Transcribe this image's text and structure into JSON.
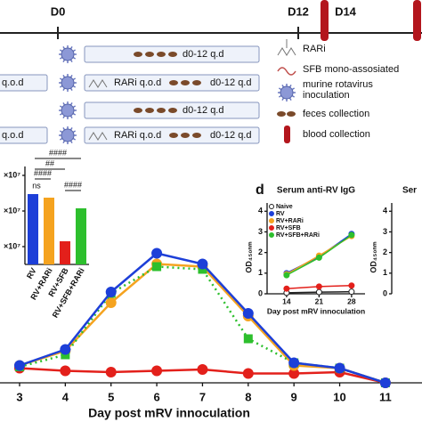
{
  "schematic": {
    "days": [
      "D0",
      "D12",
      "D14"
    ],
    "rows": [
      {
        "treatment": "d0-12 q.d"
      },
      {
        "pre": "q.o.d",
        "rari": "RARi q.o.d",
        "treatment": "d0-12 q.d"
      },
      {
        "treatment": "d0-12 q.d"
      },
      {
        "pre": "q.o.d",
        "rari": "RARi q.o.d",
        "treatment": "d0-12 q.d"
      }
    ],
    "legend": [
      [
        "RARi"
      ],
      [
        "SFB mono-assosiated"
      ],
      [
        "murine rotavirus",
        "inoculation"
      ],
      [
        "feces collection"
      ],
      [
        "blood collection"
      ]
    ]
  },
  "chart_data": [
    {
      "type": "line",
      "xlabel": "Day post mRV innoculation",
      "x": [
        3,
        4,
        5,
        6,
        7,
        8,
        9,
        10,
        11
      ],
      "xlim": [
        2.572,
        11.8
      ],
      "xticks": [
        3,
        4,
        5,
        6,
        7,
        8,
        9,
        10,
        11
      ],
      "ylim": [
        0,
        100
      ],
      "series": [
        {
          "color": "#e3201b",
          "values": [
            11,
            9,
            8,
            9,
            10,
            7,
            7,
            8,
            0
          ]
        },
        {
          "color": "#f5a31f",
          "values": [
            13,
            24,
            60,
            89,
            87,
            50,
            13,
            11,
            0
          ]
        },
        {
          "color": "#2dbf2d",
          "linestyle": "dotted",
          "values": [
            12,
            21,
            67,
            87,
            85,
            33,
            15,
            11,
            0
          ]
        },
        {
          "color": "#1d3fd8",
          "values": [
            13,
            25,
            68,
            97,
            89,
            52,
            15,
            11,
            0
          ]
        }
      ]
    },
    {
      "type": "bar",
      "categories": [
        "RV",
        "RV+RARi",
        "RV+SFB",
        "RV+SFB+RARi"
      ],
      "values": [
        39500000,
        37500000,
        13000000,
        31500000
      ],
      "colors": [
        "#1d3fd8",
        "#f5a31f",
        "#e3201b",
        "#2dbf2d"
      ],
      "ylim": [
        0,
        55000000
      ],
      "yticks": [
        {
          "value": 10000000,
          "label": "×10⁷"
        },
        {
          "value": 30000000,
          "label": "×10⁷"
        },
        {
          "value": 50000000,
          "label": "×10⁷"
        }
      ],
      "annotations": [
        "####",
        "##",
        "####",
        "ns",
        "####"
      ]
    },
    {
      "type": "line",
      "panel": "d",
      "title": "Serum anti-RV IgG",
      "xlabel": "Day post mRV innoculation",
      "ylabel": "OD₄₅₀ₙₘ",
      "x": [
        14,
        21,
        28
      ],
      "xlim": [
        9.8,
        30.9
      ],
      "xticks": [
        14,
        21,
        28
      ],
      "ylim": [
        0,
        4.4
      ],
      "yticks": [
        0,
        1,
        2,
        3,
        4
      ],
      "legend": "upper left",
      "series": [
        {
          "name": "Naive",
          "color": "#222222",
          "marker": "open",
          "values": [
            0.05,
            0.08,
            0.1
          ]
        },
        {
          "name": "RV",
          "color": "#1d3fd8",
          "values": [
            1.0,
            1.8,
            2.9
          ]
        },
        {
          "name": "RV+RARi",
          "color": "#f5a31f",
          "values": [
            0.95,
            1.85,
            2.8
          ]
        },
        {
          "name": "RV+SFB",
          "color": "#e3201b",
          "values": [
            0.25,
            0.35,
            0.4
          ]
        },
        {
          "name": "RV+SFB+RARi",
          "color": "#2dbf2d",
          "values": [
            0.9,
            1.75,
            2.85
          ]
        }
      ]
    },
    {
      "type": "line",
      "title": "Ser",
      "ylabel": "OD₄₅₀ₙₘ",
      "ylim": [
        0,
        4.4
      ],
      "yticks": [
        0,
        1,
        2,
        3,
        4
      ],
      "series": []
    }
  ]
}
